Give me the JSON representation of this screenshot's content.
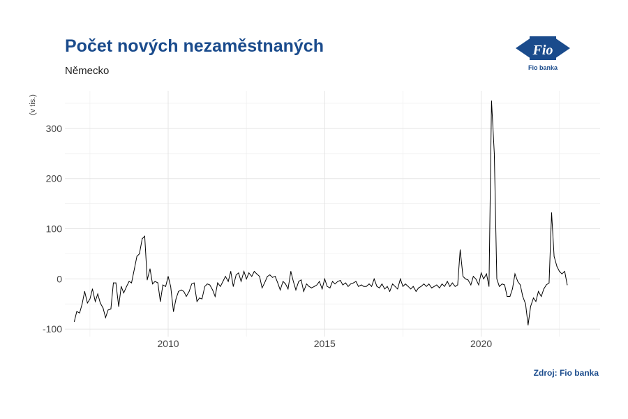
{
  "title": "Počet nových nezaměstnaných",
  "subtitle": "Německo",
  "source": "Zdroj: Fio banka",
  "logo": {
    "name": "Fio",
    "caption": "Fio banka"
  },
  "colors": {
    "accent": "#1a4b8c",
    "line": "#000000",
    "grid": "#e5e5e5"
  },
  "chart_data": {
    "type": "line",
    "title": "Počet nových nezaměstnaných",
    "subtitle": "Německo",
    "ylabel": "(v tis.)",
    "xlabel": "",
    "xlim": [
      2006.7,
      2023.8
    ],
    "ylim": [
      -115,
      375
    ],
    "x_ticks": [
      2010,
      2015,
      2020
    ],
    "y_ticks": [
      -100,
      0,
      100,
      200,
      300
    ],
    "grid": true,
    "series": [
      {
        "values": [
          [
            2007.0,
            -85
          ],
          [
            2007.08,
            -65
          ],
          [
            2007.17,
            -68
          ],
          [
            2007.25,
            -50
          ],
          [
            2007.33,
            -25
          ],
          [
            2007.42,
            -48
          ],
          [
            2007.5,
            -40
          ],
          [
            2007.58,
            -20
          ],
          [
            2007.67,
            -45
          ],
          [
            2007.75,
            -30
          ],
          [
            2007.83,
            -48
          ],
          [
            2007.92,
            -58
          ],
          [
            2008.0,
            -77
          ],
          [
            2008.08,
            -62
          ],
          [
            2008.17,
            -60
          ],
          [
            2008.25,
            -8
          ],
          [
            2008.33,
            -8
          ],
          [
            2008.42,
            -55
          ],
          [
            2008.5,
            -15
          ],
          [
            2008.58,
            -28
          ],
          [
            2008.67,
            -15
          ],
          [
            2008.75,
            -5
          ],
          [
            2008.83,
            -8
          ],
          [
            2008.92,
            20
          ],
          [
            2009.0,
            45
          ],
          [
            2009.08,
            50
          ],
          [
            2009.17,
            80
          ],
          [
            2009.25,
            85
          ],
          [
            2009.33,
            -2
          ],
          [
            2009.42,
            20
          ],
          [
            2009.5,
            -10
          ],
          [
            2009.58,
            -5
          ],
          [
            2009.67,
            -8
          ],
          [
            2009.75,
            -45
          ],
          [
            2009.83,
            -12
          ],
          [
            2009.92,
            -15
          ],
          [
            2010.0,
            5
          ],
          [
            2010.08,
            -15
          ],
          [
            2010.17,
            -65
          ],
          [
            2010.25,
            -40
          ],
          [
            2010.33,
            -25
          ],
          [
            2010.42,
            -22
          ],
          [
            2010.5,
            -25
          ],
          [
            2010.58,
            -35
          ],
          [
            2010.67,
            -25
          ],
          [
            2010.75,
            -10
          ],
          [
            2010.83,
            -8
          ],
          [
            2010.92,
            -45
          ],
          [
            2011.0,
            -38
          ],
          [
            2011.08,
            -40
          ],
          [
            2011.17,
            -15
          ],
          [
            2011.25,
            -10
          ],
          [
            2011.33,
            -12
          ],
          [
            2011.42,
            -22
          ],
          [
            2011.5,
            -35
          ],
          [
            2011.58,
            -8
          ],
          [
            2011.67,
            -15
          ],
          [
            2011.75,
            -5
          ],
          [
            2011.83,
            5
          ],
          [
            2011.92,
            -5
          ],
          [
            2012.0,
            15
          ],
          [
            2012.08,
            -15
          ],
          [
            2012.17,
            8
          ],
          [
            2012.25,
            12
          ],
          [
            2012.33,
            -5
          ],
          [
            2012.42,
            15
          ],
          [
            2012.5,
            0
          ],
          [
            2012.58,
            12
          ],
          [
            2012.67,
            5
          ],
          [
            2012.75,
            15
          ],
          [
            2012.83,
            10
          ],
          [
            2012.92,
            5
          ],
          [
            2013.0,
            -18
          ],
          [
            2013.08,
            -8
          ],
          [
            2013.17,
            5
          ],
          [
            2013.25,
            8
          ],
          [
            2013.33,
            3
          ],
          [
            2013.42,
            5
          ],
          [
            2013.5,
            -8
          ],
          [
            2013.58,
            -22
          ],
          [
            2013.67,
            -5
          ],
          [
            2013.75,
            -10
          ],
          [
            2013.83,
            -20
          ],
          [
            2013.92,
            15
          ],
          [
            2014.0,
            -5
          ],
          [
            2014.08,
            -22
          ],
          [
            2014.17,
            -5
          ],
          [
            2014.25,
            -2
          ],
          [
            2014.33,
            -25
          ],
          [
            2014.42,
            -10
          ],
          [
            2014.5,
            -15
          ],
          [
            2014.58,
            -18
          ],
          [
            2014.67,
            -15
          ],
          [
            2014.75,
            -12
          ],
          [
            2014.83,
            -5
          ],
          [
            2014.92,
            -20
          ],
          [
            2015.0,
            0
          ],
          [
            2015.08,
            -15
          ],
          [
            2015.17,
            -18
          ],
          [
            2015.25,
            -5
          ],
          [
            2015.33,
            -10
          ],
          [
            2015.42,
            -5
          ],
          [
            2015.5,
            -3
          ],
          [
            2015.58,
            -12
          ],
          [
            2015.67,
            -8
          ],
          [
            2015.75,
            -15
          ],
          [
            2015.83,
            -10
          ],
          [
            2015.92,
            -8
          ],
          [
            2016.0,
            -5
          ],
          [
            2016.08,
            -15
          ],
          [
            2016.17,
            -12
          ],
          [
            2016.25,
            -15
          ],
          [
            2016.33,
            -15
          ],
          [
            2016.42,
            -10
          ],
          [
            2016.5,
            -15
          ],
          [
            2016.58,
            0
          ],
          [
            2016.67,
            -15
          ],
          [
            2016.75,
            -18
          ],
          [
            2016.83,
            -10
          ],
          [
            2016.92,
            -20
          ],
          [
            2017.0,
            -15
          ],
          [
            2017.08,
            -25
          ],
          [
            2017.17,
            -10
          ],
          [
            2017.25,
            -15
          ],
          [
            2017.33,
            -20
          ],
          [
            2017.42,
            0
          ],
          [
            2017.5,
            -15
          ],
          [
            2017.58,
            -10
          ],
          [
            2017.67,
            -15
          ],
          [
            2017.75,
            -20
          ],
          [
            2017.83,
            -15
          ],
          [
            2017.92,
            -25
          ],
          [
            2018.0,
            -18
          ],
          [
            2018.08,
            -15
          ],
          [
            2018.17,
            -10
          ],
          [
            2018.25,
            -15
          ],
          [
            2018.33,
            -10
          ],
          [
            2018.42,
            -18
          ],
          [
            2018.5,
            -15
          ],
          [
            2018.58,
            -12
          ],
          [
            2018.67,
            -18
          ],
          [
            2018.75,
            -10
          ],
          [
            2018.83,
            -15
          ],
          [
            2018.92,
            -5
          ],
          [
            2019.0,
            -15
          ],
          [
            2019.08,
            -8
          ],
          [
            2019.17,
            -15
          ],
          [
            2019.25,
            -12
          ],
          [
            2019.33,
            58
          ],
          [
            2019.42,
            5
          ],
          [
            2019.5,
            0
          ],
          [
            2019.58,
            -2
          ],
          [
            2019.67,
            -12
          ],
          [
            2019.75,
            5
          ],
          [
            2019.83,
            0
          ],
          [
            2019.92,
            -12
          ],
          [
            2020.0,
            12
          ],
          [
            2020.08,
            0
          ],
          [
            2020.17,
            10
          ],
          [
            2020.25,
            -15
          ],
          [
            2020.33,
            355
          ],
          [
            2020.42,
            250
          ],
          [
            2020.5,
            0
          ],
          [
            2020.58,
            -15
          ],
          [
            2020.67,
            -10
          ],
          [
            2020.75,
            -12
          ],
          [
            2020.83,
            -35
          ],
          [
            2020.92,
            -35
          ],
          [
            2021.0,
            -20
          ],
          [
            2021.08,
            10
          ],
          [
            2021.17,
            -5
          ],
          [
            2021.25,
            -12
          ],
          [
            2021.33,
            -35
          ],
          [
            2021.42,
            -50
          ],
          [
            2021.5,
            -92
          ],
          [
            2021.58,
            -55
          ],
          [
            2021.67,
            -38
          ],
          [
            2021.75,
            -45
          ],
          [
            2021.83,
            -25
          ],
          [
            2021.92,
            -35
          ],
          [
            2022.0,
            -20
          ],
          [
            2022.08,
            -12
          ],
          [
            2022.17,
            -8
          ],
          [
            2022.25,
            132
          ],
          [
            2022.33,
            45
          ],
          [
            2022.42,
            25
          ],
          [
            2022.5,
            15
          ],
          [
            2022.58,
            10
          ],
          [
            2022.67,
            15
          ],
          [
            2022.75,
            -12
          ]
        ]
      }
    ]
  }
}
